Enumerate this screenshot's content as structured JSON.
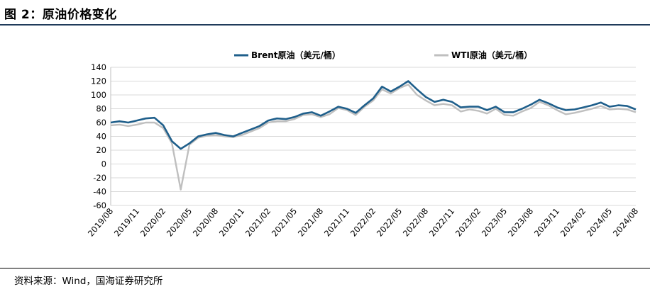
{
  "figure": {
    "title": "图 2：原油价格变化",
    "source": "资料来源：Wind，国海证券研究所"
  },
  "colors": {
    "brent": "#1f5f8b",
    "wti": "#bfbfbf",
    "grid": "#d9d9d9",
    "rule": "#1f3b5a"
  },
  "chart_data": {
    "type": "line",
    "title": "",
    "xlabel": "",
    "ylabel": "",
    "ylim": [
      -60,
      140
    ],
    "yticks": [
      140,
      120,
      100,
      80,
      60,
      40,
      20,
      0,
      -20,
      -40,
      -60
    ],
    "xtick_labels": [
      "2019/08",
      "2019/11",
      "2020/02",
      "2020/05",
      "2020/08",
      "2020/11",
      "2021/02",
      "2021/05",
      "2021/08",
      "2021/11",
      "2022/02",
      "2022/05",
      "2022/08",
      "2022/11",
      "2023/02",
      "2023/05",
      "2023/08",
      "2023/11",
      "2024/02",
      "2024/05",
      "2024/08"
    ],
    "grid": "horizontal",
    "legend_position": "top",
    "x": [
      "2019/08",
      "2019/09",
      "2019/10",
      "2019/11",
      "2019/12",
      "2020/01",
      "2020/02",
      "2020/03",
      "2020/04",
      "2020/05",
      "2020/06",
      "2020/07",
      "2020/08",
      "2020/09",
      "2020/10",
      "2020/11",
      "2020/12",
      "2021/01",
      "2021/02",
      "2021/03",
      "2021/04",
      "2021/05",
      "2021/06",
      "2021/07",
      "2021/08",
      "2021/09",
      "2021/10",
      "2021/11",
      "2021/12",
      "2022/01",
      "2022/02",
      "2022/03",
      "2022/04",
      "2022/05",
      "2022/06",
      "2022/07",
      "2022/08",
      "2022/09",
      "2022/10",
      "2022/11",
      "2022/12",
      "2023/01",
      "2023/02",
      "2023/03",
      "2023/04",
      "2023/05",
      "2023/06",
      "2023/07",
      "2023/08",
      "2023/09",
      "2023/10",
      "2023/11",
      "2023/12",
      "2024/01",
      "2024/02",
      "2024/03",
      "2024/04",
      "2024/05",
      "2024/06",
      "2024/07",
      "2024/08"
    ],
    "series": [
      {
        "name": "Brent原油（美元/桶）",
        "values": [
          60,
          62,
          60,
          63,
          66,
          67,
          56,
          33,
          22,
          30,
          40,
          43,
          45,
          42,
          40,
          45,
          50,
          55,
          63,
          66,
          65,
          68,
          73,
          75,
          70,
          76,
          83,
          80,
          74,
          85,
          95,
          112,
          105,
          112,
          120,
          108,
          97,
          90,
          93,
          90,
          82,
          83,
          83,
          78,
          83,
          75,
          75,
          80,
          86,
          93,
          88,
          82,
          78,
          79,
          82,
          85,
          89,
          83,
          85,
          84,
          79
        ]
      },
      {
        "name": "WTI原油（美元/桶）",
        "values": [
          56,
          57,
          55,
          57,
          60,
          60,
          52,
          30,
          -37,
          28,
          38,
          41,
          42,
          40,
          39,
          42,
          47,
          52,
          60,
          62,
          62,
          65,
          71,
          72,
          68,
          72,
          81,
          78,
          71,
          83,
          92,
          108,
          102,
          110,
          115,
          100,
          92,
          85,
          87,
          85,
          76,
          79,
          77,
          73,
          80,
          71,
          70,
          76,
          81,
          90,
          85,
          78,
          72,
          74,
          77,
          80,
          84,
          79,
          80,
          79,
          75
        ]
      }
    ]
  }
}
